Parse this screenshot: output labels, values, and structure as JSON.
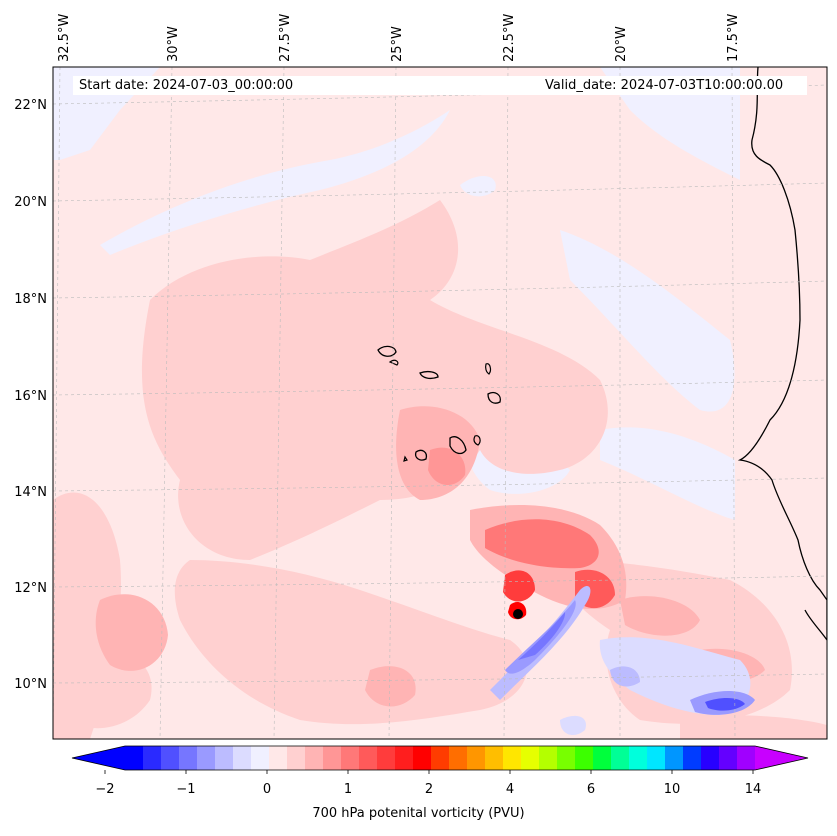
{
  "map": {
    "start_date": "Start date: 2024-07-03_00:00:00",
    "valid_date": "Valid_date: 2024-07-03T10:00:00.00",
    "lon_labels": [
      "32.5°W",
      "30°W",
      "27.5°W",
      "25°W",
      "22.5°W",
      "20°W",
      "17.5°W"
    ],
    "lat_labels": [
      "22°N",
      "20°N",
      "18°N",
      "16°N",
      "14°N",
      "12°N",
      "10°N"
    ],
    "variable": "700 hPa potenital vorticity (PVU)"
  },
  "colorbar": {
    "tick_labels": [
      "−2",
      "−1",
      "0",
      "1",
      "2",
      "4",
      "6",
      "10",
      "14"
    ],
    "colors": [
      "#0000ff",
      "#2a2aff",
      "#5050ff",
      "#7676ff",
      "#9a9aff",
      "#bcbcff",
      "#dcdcff",
      "#f0f0ff",
      "#ffe8e8",
      "#ffd0d0",
      "#ffb4b4",
      "#ff9696",
      "#ff7878",
      "#ff5a5a",
      "#ff3c3c",
      "#ff1e1e",
      "#ff0000",
      "#ff3c00",
      "#ff6e00",
      "#ff9600",
      "#ffbe00",
      "#ffe600",
      "#e6ff00",
      "#b4ff00",
      "#78ff00",
      "#3cff00",
      "#00ff3c",
      "#00ff96",
      "#00ffdc",
      "#00e6ff",
      "#0096ff",
      "#003cff",
      "#2800ff",
      "#6400ff",
      "#a000ff"
    ],
    "under_color": "#0000ff",
    "over_color": "#c800ff"
  }
}
